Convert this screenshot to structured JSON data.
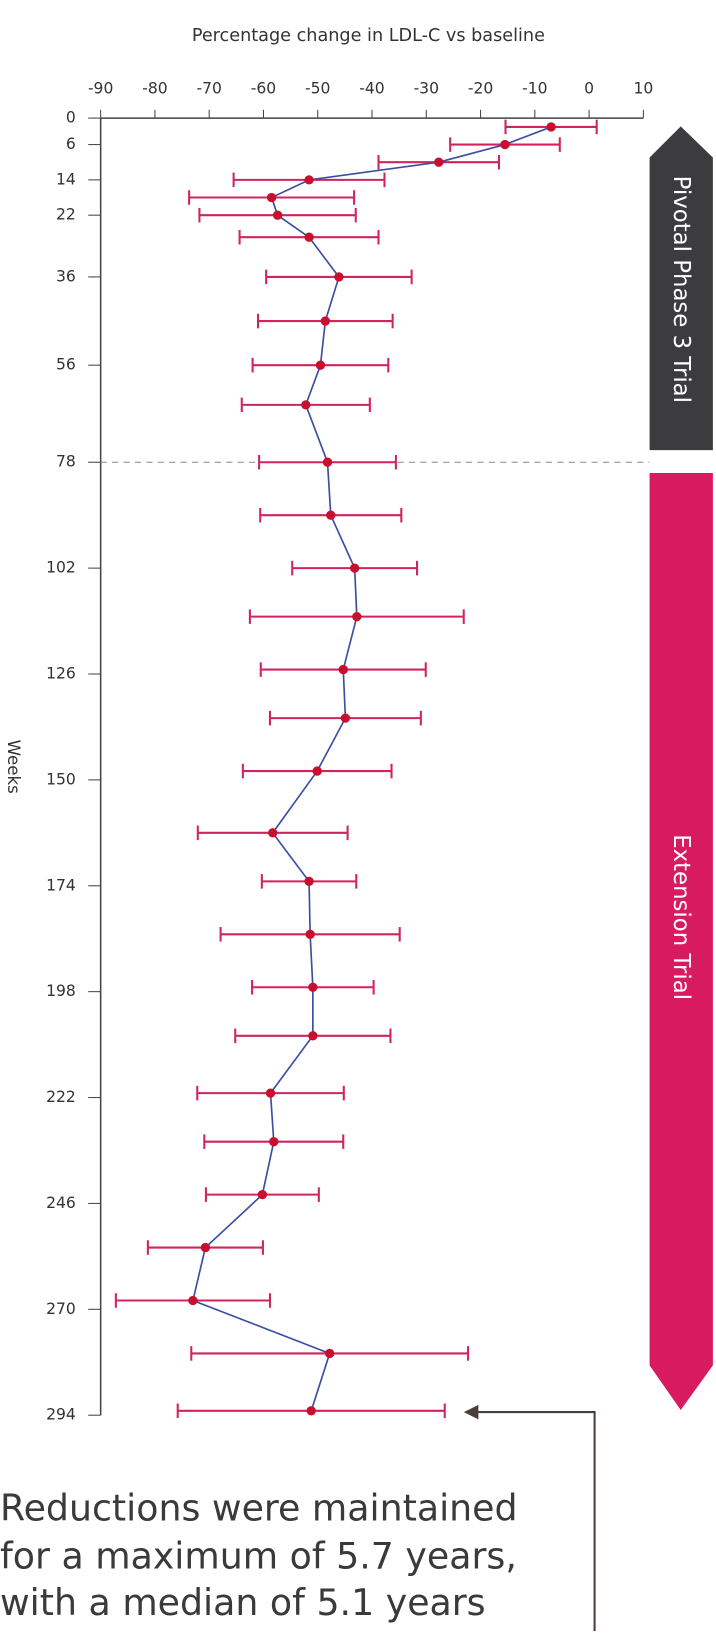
{
  "chart_data": {
    "type": "errorbar",
    "orientation": "horizontal",
    "title": "Percentage change in LDL-C vs baseline",
    "x_label": "Weeks",
    "x": [
      2,
      6,
      10,
      14,
      18,
      22,
      27,
      36,
      46,
      56,
      65,
      78,
      90,
      102,
      113,
      125,
      136,
      148,
      162,
      173,
      185,
      197,
      208,
      221,
      232,
      244,
      256,
      268,
      280,
      293
    ],
    "values": [
      -7,
      -15.5,
      -27.7,
      -51.6,
      -58.5,
      -57.4,
      -51.6,
      -46.1,
      -48.6,
      -49.5,
      -52.2,
      -48.2,
      -47.6,
      -43.2,
      -42.8,
      -45.3,
      -44.9,
      -50.1,
      -58.3,
      -51.6,
      -51.4,
      -50.9,
      -50.9,
      -58.7,
      -58.1,
      -60.2,
      -70.7,
      -73,
      -47.8,
      -51.2
    ],
    "errors": [
      8.4,
      10.1,
      11.1,
      13.9,
      15.2,
      14.4,
      12.8,
      13.4,
      12.4,
      12.5,
      11.8,
      12.6,
      13,
      11.5,
      19.7,
      15.2,
      13.9,
      13.7,
      13.8,
      8.7,
      16.5,
      11.2,
      14.3,
      13.5,
      12.8,
      10.4,
      10.6,
      14.2,
      25.5,
      24.6
    ],
    "line_color": "#3a4fa0",
    "point_color": "#c8102e",
    "error_color": "#d0245f",
    "ylim": [
      -90,
      10
    ],
    "yticks": [
      -90,
      -80,
      -70,
      -60,
      -50,
      -40,
      -30,
      -20,
      -10,
      0,
      10
    ],
    "xlim": [
      0,
      294
    ],
    "xticks": [
      0,
      6,
      14,
      22,
      36,
      56,
      78,
      102,
      126,
      150,
      174,
      198,
      222,
      246,
      270,
      294
    ],
    "divider_week": 78,
    "phases": [
      "Pivotal Phase 3 Trial",
      "Extension Trial"
    ],
    "annotation": [
      "Reductions were maintained",
      "for a maximum of 5.7 years,",
      "with a median of 5.1 years"
    ]
  }
}
